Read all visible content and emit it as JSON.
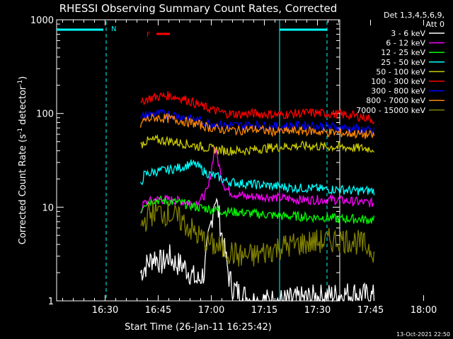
{
  "chart_data": {
    "type": "line",
    "title": "RHESSI Observing Summary Count Rates, Corrected",
    "xlabel": "Start Time (26-Jan-11 16:25:42)",
    "ylabel_main": "Corrected Count Rate (s",
    "ylabel_sup1": "-1",
    "ylabel_mid": " detector",
    "ylabel_sup2": "-1",
    "ylabel_end": ")",
    "y_scale": "log",
    "ylim": [
      1,
      1000
    ],
    "xlim_minutes": [
      16.3,
      96.3
    ],
    "x_ticks": [
      {
        "label": "16:30",
        "minutes": 30
      },
      {
        "label": "16:45",
        "minutes": 45
      },
      {
        "label": "17:00",
        "minutes": 60
      },
      {
        "label": "17:15",
        "minutes": 75
      },
      {
        "label": "17:30",
        "minutes": 90
      },
      {
        "label": "17:45",
        "minutes": 105
      },
      {
        "label": "18:00",
        "minutes": 120
      }
    ],
    "y_ticks": [
      {
        "label": "1",
        "value": 1
      },
      {
        "label": "10",
        "value": 10
      },
      {
        "label": "100",
        "value": 100
      },
      {
        "label": "1000",
        "value": 1000
      }
    ],
    "legend_header": [
      "Det 1,3,4,5,6,9,",
      "Att 0"
    ],
    "series": [
      {
        "name": "3 - 6 keV",
        "color": "#ffffff",
        "x": [
          40,
          42,
          44,
          46,
          48,
          50,
          52,
          54,
          56,
          58,
          59,
          60,
          61,
          62,
          63,
          64,
          65,
          66,
          68,
          72,
          80,
          90,
          100,
          106
        ],
        "y": [
          2,
          2.5,
          3,
          2.5,
          3,
          2.5,
          2.4,
          2,
          1.6,
          2,
          4,
          7,
          13,
          9,
          5,
          3,
          1.8,
          1.4,
          1.2,
          1,
          1,
          1.1,
          1.2,
          1.1
        ]
      },
      {
        "name": "6 - 12 keV",
        "color": "#ff00ff",
        "x": [
          40,
          41,
          44,
          48,
          52,
          55,
          57,
          59,
          60,
          61,
          62,
          63,
          64,
          66,
          70,
          75,
          80,
          85,
          90,
          95,
          100,
          106
        ],
        "y": [
          9,
          11,
          12,
          12,
          11.5,
          11,
          12,
          15,
          25,
          45,
          30,
          20,
          16,
          14,
          13,
          13,
          12.5,
          12,
          12,
          12,
          11.5,
          11
        ]
      },
      {
        "name": "12 - 25 keV",
        "color": "#00ff00",
        "x": [
          40,
          41,
          44,
          48,
          52,
          56,
          60,
          64,
          68,
          72,
          76,
          80,
          84,
          88,
          92,
          96,
          100,
          106
        ],
        "y": [
          9,
          11,
          12,
          11.5,
          11,
          10,
          9.5,
          9,
          8.8,
          8.5,
          8.3,
          8,
          8,
          7.8,
          7.8,
          7.5,
          7.5,
          7.3
        ]
      },
      {
        "name": "25 - 50 keV",
        "color": "#00ffff",
        "x": [
          40,
          41,
          44,
          48,
          52,
          54,
          56,
          58,
          60,
          62,
          64,
          68,
          72,
          76,
          80,
          84,
          88,
          92,
          96,
          100,
          106
        ],
        "y": [
          17,
          22,
          24,
          25,
          27,
          29,
          28,
          24,
          22,
          21,
          19,
          18,
          17.5,
          17,
          16.5,
          16,
          16,
          15.5,
          15.5,
          15,
          15
        ]
      },
      {
        "name": "50 - 100 keV",
        "color": "#cccc00",
        "x": [
          40,
          41,
          44,
          48,
          52,
          56,
          60,
          64,
          68,
          72,
          76,
          80,
          84,
          88,
          92,
          96,
          100,
          106
        ],
        "y": [
          45,
          50,
          52,
          51,
          48,
          45,
          42,
          40,
          40,
          41,
          43,
          44,
          45,
          45,
          44,
          44,
          43,
          42
        ]
      },
      {
        "name": "100 - 300 keV",
        "color": "#ff0000",
        "x": [
          40,
          41,
          44,
          48,
          52,
          56,
          60,
          64,
          68,
          72,
          76,
          80,
          84,
          88,
          92,
          96,
          100,
          104,
          106
        ],
        "y": [
          120,
          140,
          150,
          155,
          145,
          125,
          110,
          100,
          98,
          100,
          98,
          97,
          100,
          102,
          100,
          98,
          95,
          90,
          85
        ]
      },
      {
        "name": "300 - 800 keV",
        "color": "#0000ff",
        "x": [
          40,
          41,
          44,
          48,
          52,
          56,
          60,
          64,
          68,
          72,
          76,
          80,
          84,
          88,
          92,
          96,
          100,
          104,
          106
        ],
        "y": [
          85,
          95,
          100,
          98,
          92,
          85,
          78,
          75,
          74,
          76,
          73,
          72,
          74,
          74,
          73,
          71,
          69,
          66,
          64
        ]
      },
      {
        "name": "800 - 7000 keV",
        "color": "#ff8800",
        "x": [
          40,
          41,
          44,
          48,
          52,
          56,
          60,
          64,
          68,
          72,
          76,
          80,
          84,
          88,
          92,
          96,
          100,
          104,
          106
        ],
        "y": [
          75,
          85,
          90,
          88,
          83,
          77,
          70,
          67,
          66,
          68,
          65,
          64,
          65,
          65,
          63,
          62,
          61,
          59,
          58
        ]
      },
      {
        "name": "7000 - 15000 keV",
        "color": "#808000",
        "x": [
          40,
          42,
          44,
          48,
          52,
          56,
          60,
          64,
          68,
          72,
          76,
          80,
          84,
          88,
          92,
          96,
          100,
          104,
          106
        ],
        "y": [
          6,
          8,
          9,
          8.5,
          7,
          5,
          4,
          3.5,
          3,
          3,
          3.4,
          3.8,
          4,
          4.2,
          4.3,
          4.5,
          4.4,
          3.8,
          3.5
        ]
      }
    ],
    "annotations": [
      {
        "text": "N",
        "color": "#00ffff"
      },
      {
        "text": "F",
        "color": "#ff0000"
      }
    ],
    "footer": "13-Oct-2021 22:50"
  }
}
